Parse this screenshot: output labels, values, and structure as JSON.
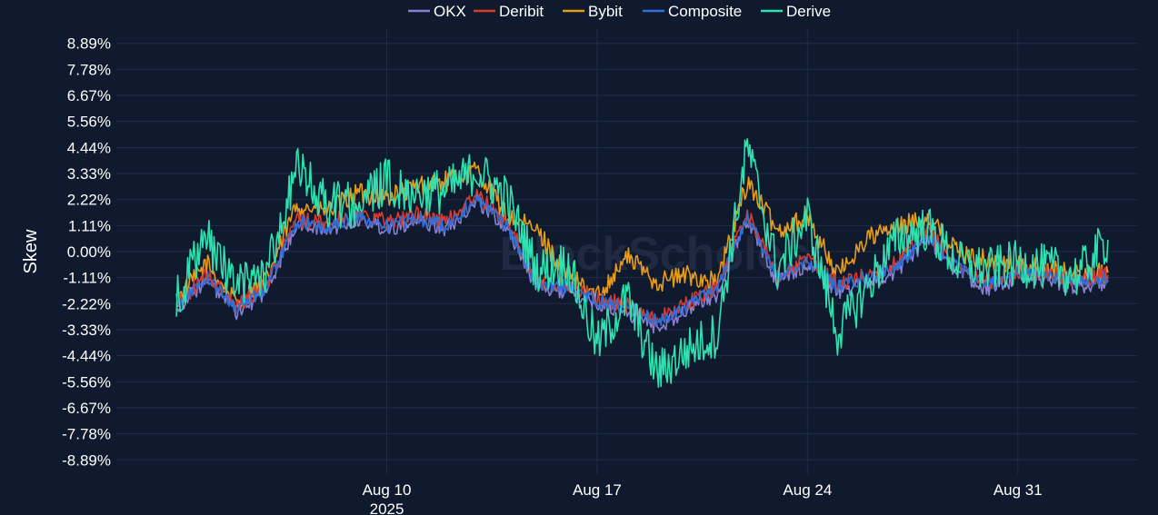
{
  "chart_data": {
    "type": "line",
    "ylabel": "Skew",
    "xlabel": "",
    "watermark": "BlockScholes",
    "legend_position": "top-center",
    "x_range": [
      "2025-08-01",
      "2025-09-04"
    ],
    "ylim": [
      -9.5,
      9.5
    ],
    "y_ticks": [
      "8.89%",
      "7.78%",
      "6.67%",
      "5.56%",
      "4.44%",
      "3.33%",
      "2.22%",
      "1.11%",
      "0.00%",
      "-1.11%",
      "-2.22%",
      "-3.33%",
      "-4.44%",
      "-5.56%",
      "-6.67%",
      "-7.78%",
      "-8.89%"
    ],
    "x_ticks": [
      {
        "date": "2025-08-10",
        "label": "Aug 10",
        "sublabel": "2025"
      },
      {
        "date": "2025-08-17",
        "label": "Aug 17",
        "sublabel": ""
      },
      {
        "date": "2025-08-24",
        "label": "Aug 24",
        "sublabel": ""
      },
      {
        "date": "2025-08-31",
        "label": "Aug 31",
        "sublabel": ""
      }
    ],
    "grid": true,
    "x": [
      "2025-08-03",
      "2025-08-04",
      "2025-08-05",
      "2025-08-06",
      "2025-08-07",
      "2025-08-08",
      "2025-08-09",
      "2025-08-10",
      "2025-08-11",
      "2025-08-12",
      "2025-08-13",
      "2025-08-14",
      "2025-08-15",
      "2025-08-16",
      "2025-08-17",
      "2025-08-18",
      "2025-08-19",
      "2025-08-20",
      "2025-08-21",
      "2025-08-22",
      "2025-08-23",
      "2025-08-24",
      "2025-08-25",
      "2025-08-26",
      "2025-08-27",
      "2025-08-28",
      "2025-08-29",
      "2025-08-30",
      "2025-08-31",
      "2025-09-01",
      "2025-09-02",
      "2025-09-03"
    ],
    "series": [
      {
        "name": "OKX",
        "color": "#8b7fd4",
        "values": [
          -2.4,
          -1.2,
          -2.6,
          -1.7,
          1.2,
          0.9,
          1.4,
          1.0,
          1.3,
          1.0,
          2.2,
          1.0,
          -1.5,
          -1.7,
          -2.2,
          -2.6,
          -3.2,
          -2.5,
          -1.8,
          1.4,
          -1.3,
          -0.5,
          -1.7,
          -1.3,
          -0.8,
          0.6,
          -0.9,
          -1.6,
          -1.1,
          -1.2,
          -1.5,
          -1.3
        ]
      },
      {
        "name": "Deribit",
        "color": "#d93a2b",
        "values": [
          -2.3,
          -1.0,
          -2.3,
          -1.4,
          1.4,
          1.2,
          1.7,
          1.3,
          1.6,
          1.3,
          2.4,
          1.3,
          -1.3,
          -1.4,
          -2.0,
          -2.3,
          -2.9,
          -2.2,
          -1.5,
          1.7,
          -1.0,
          -0.3,
          -1.4,
          -1.0,
          -0.5,
          0.9,
          -0.6,
          -1.3,
          -0.8,
          -0.9,
          -1.2,
          -1.0
        ]
      },
      {
        "name": "Bybit",
        "color": "#e69b1a",
        "values": [
          -2.1,
          -0.5,
          -2.2,
          -1.2,
          2.0,
          1.7,
          2.5,
          2.3,
          2.8,
          3.0,
          3.5,
          1.5,
          0.9,
          -1.0,
          -1.9,
          -0.2,
          -1.3,
          -1.0,
          -1.3,
          3.0,
          0.9,
          1.5,
          -1.0,
          0.6,
          1.0,
          1.5,
          0.0,
          -0.4,
          -0.6,
          -0.8,
          -1.0,
          -0.9
        ]
      },
      {
        "name": "Composite",
        "color": "#2e6fd9",
        "values": [
          -2.3,
          -1.1,
          -2.4,
          -1.5,
          1.3,
          1.0,
          1.5,
          1.1,
          1.4,
          1.1,
          2.3,
          1.1,
          -1.4,
          -1.5,
          -2.1,
          -2.4,
          -3.0,
          -2.3,
          -1.6,
          1.5,
          -1.1,
          -0.4,
          -1.5,
          -1.1,
          -0.6,
          0.7,
          -0.7,
          -1.4,
          -0.9,
          -1.0,
          -1.3,
          -1.1
        ]
      },
      {
        "name": "Derive",
        "color": "#2fe0b0",
        "values": [
          -2.0,
          0.5,
          -1.5,
          -0.8,
          3.5,
          2.0,
          2.0,
          3.0,
          2.5,
          2.6,
          3.5,
          2.3,
          -0.8,
          -0.5,
          -4.0,
          -2.0,
          -5.2,
          -4.2,
          -3.5,
          4.5,
          -0.8,
          1.5,
          -3.5,
          -1.5,
          0.6,
          1.0,
          -0.5,
          -0.8,
          -0.5,
          -0.7,
          -1.0,
          0.5
        ]
      }
    ]
  }
}
